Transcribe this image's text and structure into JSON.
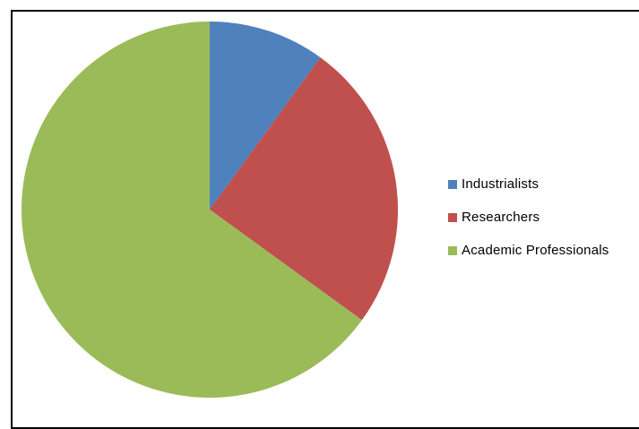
{
  "chart_data": {
    "type": "pie",
    "title": "",
    "categories": [
      "Industrialists",
      "Researchers",
      "Academic Professionals"
    ],
    "values": [
      10,
      25,
      65
    ],
    "colors": [
      "#4f81bd",
      "#c0504d",
      "#9bbb59"
    ],
    "start_angle_deg": 0,
    "direction": "clockwise",
    "legend_position": "right"
  }
}
